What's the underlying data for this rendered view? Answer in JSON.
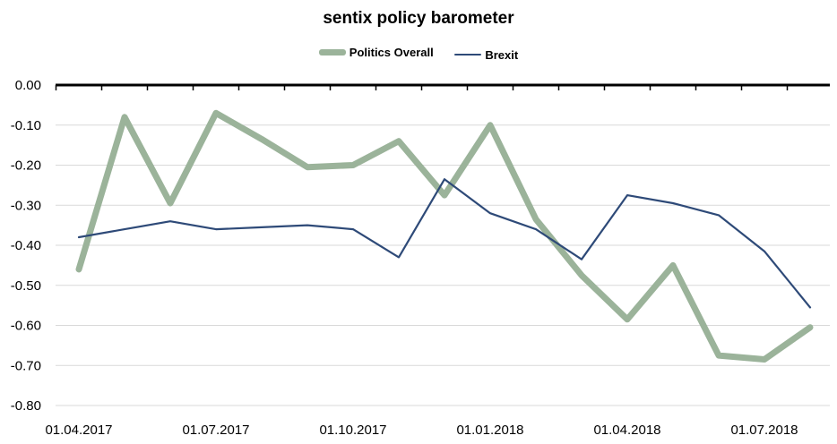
{
  "chart_data": {
    "type": "line",
    "title": "sentix policy barometer",
    "xlabel": "",
    "ylabel": "",
    "x_tick_labels": [
      "01.04.2017",
      "01.07.2017",
      "01.10.2017",
      "01.01.2018",
      "01.04.2018",
      "01.07.2018"
    ],
    "y_tick_labels": [
      "0.00",
      "-0.10",
      "-0.20",
      "-0.30",
      "-0.40",
      "-0.50",
      "-0.60",
      "-0.70",
      "-0.80"
    ],
    "ylim": [
      -0.8,
      0.0
    ],
    "grid": true,
    "legend": "top-center",
    "series": [
      {
        "name": "Politics Overall",
        "color": "#9bb39a",
        "values": [
          -0.46,
          -0.08,
          -0.295,
          -0.07,
          -0.135,
          -0.205,
          -0.2,
          -0.14,
          -0.275,
          -0.1,
          -0.335,
          -0.475,
          -0.585,
          -0.45,
          -0.675,
          -0.685,
          -0.605
        ]
      },
      {
        "name": "Brexit",
        "color": "#2e4a78",
        "values": [
          -0.38,
          -0.36,
          -0.34,
          -0.36,
          -0.355,
          -0.35,
          -0.36,
          -0.43,
          -0.235,
          -0.32,
          -0.36,
          -0.435,
          -0.275,
          -0.295,
          -0.325,
          -0.415,
          -0.555
        ]
      }
    ]
  }
}
